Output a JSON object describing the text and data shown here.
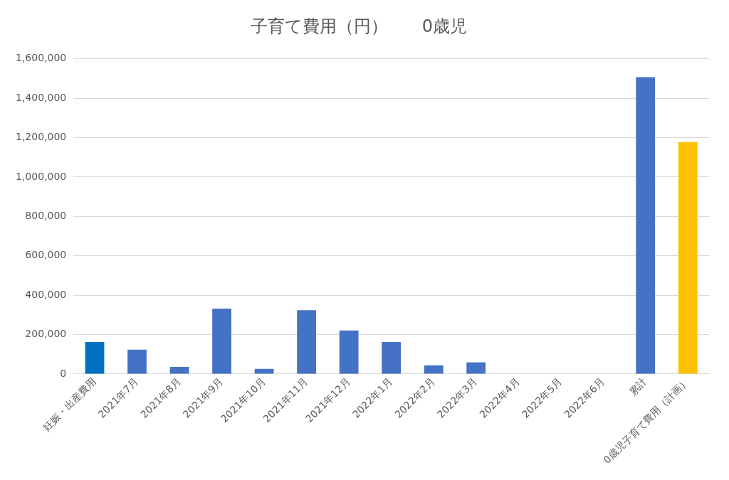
{
  "chart_data": {
    "type": "bar",
    "title": "子育て費用（円）　　0歳児",
    "categories": [
      "妊娠・出産費用",
      "2021年7月",
      "2021年8月",
      "2021年9月",
      "2021年10月",
      "2021年11月",
      "2021年12月",
      "2022年1月",
      "2022年2月",
      "2022年3月",
      "2022年4月",
      "2022年5月",
      "2022年6月",
      "累計",
      "0歳児子育て費用（計画）"
    ],
    "values": [
      162000,
      123000,
      36000,
      332000,
      26000,
      324000,
      221000,
      162000,
      44000,
      59000,
      0,
      0,
      0,
      1507000,
      1178000
    ],
    "colors": [
      "#0070c0",
      "#4472c4",
      "#4472c4",
      "#4472c4",
      "#4472c4",
      "#4472c4",
      "#4472c4",
      "#4472c4",
      "#4472c4",
      "#4472c4",
      "#4472c4",
      "#4472c4",
      "#4472c4",
      "#4472c4",
      "#ffc000"
    ],
    "ylim": [
      0,
      1600000
    ],
    "yticks": [
      0,
      {
        "value": 200000,
        "label": "200,000"
      },
      {
        "value": 400000,
        "label": "400,000"
      },
      {
        "value": 600000,
        "label": "600,000"
      },
      {
        "value": 800000,
        "label": "800,000"
      },
      {
        "value": 1000000,
        "label": "1,000,000"
      },
      {
        "value": 1200000,
        "label": "1,200,000"
      },
      {
        "value": 1400000,
        "label": "1,400,000"
      },
      {
        "value": 1600000,
        "label": "1,600,000"
      }
    ],
    "grid": "y",
    "legend": false
  }
}
